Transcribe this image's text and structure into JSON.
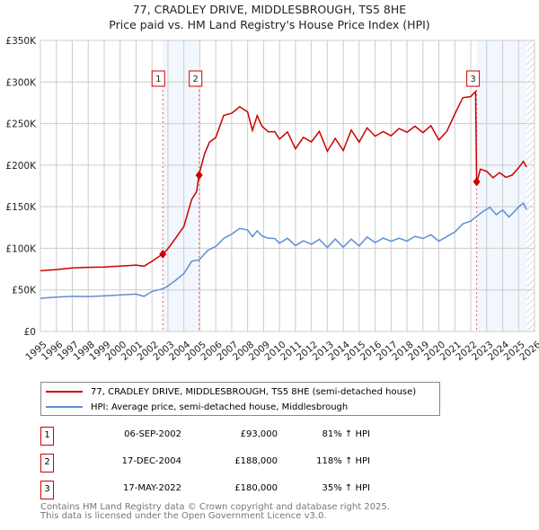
{
  "chart_data": {
    "type": "line",
    "title": "77, CRADLEY DRIVE, MIDDLESBROUGH, TS5 8HE",
    "subtitle": "Price paid vs. HM Land Registry's House Price Index (HPI)",
    "xlim": [
      1995,
      2026
    ],
    "ylim": [
      0,
      350000
    ],
    "x_ticks": [
      "1995",
      "1996",
      "1997",
      "1998",
      "1999",
      "2000",
      "2001",
      "2002",
      "2003",
      "2004",
      "2005",
      "2006",
      "2007",
      "2008",
      "2009",
      "2010",
      "2011",
      "2012",
      "2013",
      "2014",
      "2015",
      "2016",
      "2017",
      "2018",
      "2019",
      "2020",
      "2021",
      "2022",
      "2023",
      "2024",
      "2025",
      "2026"
    ],
    "y_ticks": [
      {
        "v": 0,
        "label": "£0"
      },
      {
        "v": 50000,
        "label": "£50K"
      },
      {
        "v": 100000,
        "label": "£100K"
      },
      {
        "v": 150000,
        "label": "£150K"
      },
      {
        "v": 200000,
        "label": "£200K"
      },
      {
        "v": 250000,
        "label": "£250K"
      },
      {
        "v": 300000,
        "label": "£300K"
      },
      {
        "v": 350000,
        "label": "£350K"
      }
    ],
    "grid": true,
    "series": [
      {
        "name": "77, CRADLEY DRIVE, MIDDLESBROUGH, TS5 8HE (semi-detached house)",
        "color": "#cc0000",
        "x": [
          1995,
          1996,
          1997,
          1998,
          1999,
          2000,
          2001,
          2001.5,
          2002,
          2002.68,
          2003,
          2003.5,
          2004,
          2004.5,
          2004.8,
          2004.96,
          2005.3,
          2005.6,
          2006,
          2006.5,
          2007,
          2007.5,
          2008,
          2008.3,
          2008.6,
          2008.9,
          2009.3,
          2009.7,
          2010,
          2010.5,
          2011,
          2011.5,
          2012,
          2012.5,
          2013,
          2013.5,
          2014,
          2014.5,
          2015,
          2015.5,
          2016,
          2016.5,
          2017,
          2017.5,
          2018,
          2018.5,
          2019,
          2019.5,
          2020,
          2020.5,
          2021,
          2021.5,
          2022,
          2022.3,
          2022.37,
          2022.6,
          2023,
          2023.4,
          2023.8,
          2024.2,
          2024.6,
          2025,
          2025.3,
          2025.5
        ],
        "values": [
          73000,
          74000,
          76000,
          77000,
          78000,
          79000,
          80000,
          78000,
          84000,
          93000,
          100000,
          113000,
          127000,
          158000,
          168000,
          188000,
          215000,
          228000,
          235000,
          258000,
          262000,
          268000,
          266000,
          242000,
          262000,
          245000,
          240000,
          238000,
          233000,
          240000,
          222000,
          232000,
          228000,
          238000,
          218000,
          232000,
          220000,
          241000,
          228000,
          242000,
          236000,
          240000,
          238000,
          243000,
          240000,
          244000,
          240000,
          247000,
          233000,
          240000,
          262000,
          278000,
          283000,
          288000,
          180000,
          195000,
          193000,
          183000,
          191000,
          185000,
          190000,
          197000,
          205000,
          196000
        ]
      },
      {
        "name": "HPI: Average price, semi-detached house, Middlesbrough",
        "color": "#5b8fd4",
        "x": [
          1995,
          1996,
          1997,
          1998,
          1999,
          2000,
          2001,
          2001.5,
          2002,
          2002.68,
          2003,
          2003.5,
          2004,
          2004.5,
          2004.96,
          2005.5,
          2006,
          2006.5,
          2007,
          2007.5,
          2008,
          2008.3,
          2008.6,
          2008.9,
          2009.3,
          2009.7,
          2010,
          2010.5,
          2011,
          2011.5,
          2012,
          2012.5,
          2013,
          2013.5,
          2014,
          2014.5,
          2015,
          2015.5,
          2016,
          2016.5,
          2017,
          2017.5,
          2018,
          2018.5,
          2019,
          2019.5,
          2020,
          2020.5,
          2021,
          2021.5,
          2022,
          2022.37,
          2022.8,
          2023.2,
          2023.6,
          2024,
          2024.4,
          2024.8,
          2025,
          2025.3,
          2025.5
        ],
        "values": [
          40000,
          41000,
          42000,
          42000,
          43000,
          44000,
          45000,
          42000,
          48000,
          51000,
          55000,
          62000,
          70000,
          84000,
          86000,
          97000,
          103000,
          112000,
          118000,
          123000,
          122000,
          113000,
          122000,
          115000,
          113000,
          111000,
          106000,
          111000,
          104000,
          109000,
          106000,
          110000,
          101000,
          110000,
          102000,
          111000,
          104000,
          113000,
          107000,
          111000,
          109000,
          112000,
          110000,
          114000,
          112000,
          115000,
          109000,
          114000,
          121000,
          129000,
          133000,
          137000,
          145000,
          149000,
          142000,
          146000,
          138000,
          144000,
          150000,
          154000,
          148000
        ]
      }
    ],
    "sales": [
      {
        "label": "1",
        "date": "06-SEP-2002",
        "x": 2002.68,
        "price": "£93,000",
        "value": 93000,
        "hpi": "81% ↑ HPI"
      },
      {
        "label": "2",
        "date": "17-DEC-2004",
        "x": 2004.96,
        "price": "£188,000",
        "value": 188000,
        "hpi": "118% ↑ HPI"
      },
      {
        "label": "3",
        "date": "17-MAY-2022",
        "x": 2022.37,
        "price": "£180,000",
        "value": 180000,
        "hpi": "35% ↑ HPI"
      }
    ],
    "data_end": 2025.5,
    "legend_placement": "below"
  },
  "footer": {
    "line1": "Contains HM Land Registry data © Crown copyright and database right 2025.",
    "line2": "This data is licensed under the Open Government Licence v3.0."
  }
}
